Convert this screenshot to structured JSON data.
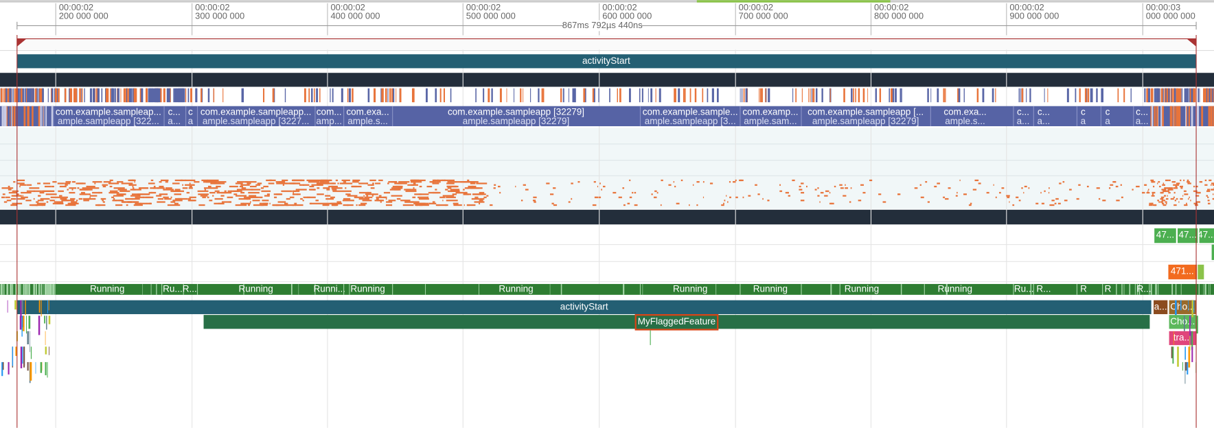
{
  "ruler": {
    "ticks": [
      {
        "time": "00:00:02",
        "ns": "200 000 000"
      },
      {
        "time": "00:00:02",
        "ns": "300 000 000"
      },
      {
        "time": "00:00:02",
        "ns": "400 000 000"
      },
      {
        "time": "00:00:02",
        "ns": "500 000 000"
      },
      {
        "time": "00:00:02",
        "ns": "600 000 000"
      },
      {
        "time": "00:00:02",
        "ns": "700 000 000"
      },
      {
        "time": "00:00:02",
        "ns": "800 000 000"
      },
      {
        "time": "00:00:02",
        "ns": "900 000 000"
      },
      {
        "time": "00:00:03",
        "ns": "000 000 000"
      }
    ]
  },
  "selection": {
    "duration": "867ms 792µs 440ns"
  },
  "tracks": {
    "top_slice": "activityStart",
    "process_slices": [
      {
        "title": "com.example.sampleap...",
        "subtitle": "ample.sampleapp [322..."
      },
      {
        "title": "c...",
        "subtitle": "a..."
      },
      {
        "title": "c",
        "subtitle": "a"
      },
      {
        "title": "com.example.sampleapp...",
        "subtitle": "ample.sampleapp [3227..."
      },
      {
        "title": "com...",
        "subtitle": "amp..."
      },
      {
        "title": "com.exa...",
        "subtitle": "ample.s..."
      },
      {
        "title": "com.example.sampleapp [32279]",
        "subtitle": "ample.sampleapp [32279]"
      },
      {
        "title": "com.example.sample...",
        "subtitle": "ample.sampleapp [3..."
      },
      {
        "title": "com.examp...",
        "subtitle": "ample.sam..."
      },
      {
        "title": "com.example.sampleapp [...",
        "subtitle": "ample.sampleapp [32279]"
      },
      {
        "title": "com.exa...",
        "subtitle": "ample.s..."
      },
      {
        "title": "c...",
        "subtitle": "a..."
      },
      {
        "title": "c...",
        "subtitle": "a..."
      },
      {
        "title": "c",
        "subtitle": "a"
      },
      {
        "title": "c",
        "subtitle": "a"
      },
      {
        "title": "c...",
        "subtitle": "a..."
      }
    ],
    "counters": [
      "47...",
      "47...",
      "47...",
      "471..."
    ],
    "thread_states": [
      "Running",
      "Ru...",
      "R...",
      "Running",
      "Runni...",
      "Running",
      "Running",
      "Running",
      "Running",
      "Running",
      "Running",
      "Ru...",
      "R...",
      "R",
      "R",
      "R..."
    ],
    "slices": [
      "activityStart",
      "MyFlaggedFeature",
      "a...",
      "Cho...",
      "Cho...",
      "tra..."
    ]
  }
}
